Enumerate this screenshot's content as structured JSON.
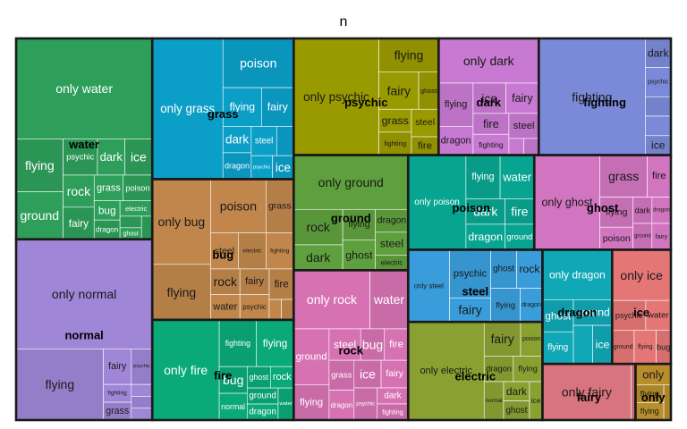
{
  "chart_data": {
    "type": "treemap",
    "title": "n",
    "groups": [
      {
        "name": "water",
        "color": "#2e9e5b",
        "light": true,
        "children": [
          {
            "name": "only water",
            "value": 55
          },
          {
            "name": "ground",
            "value": 9
          },
          {
            "name": "flying",
            "value": 10
          },
          {
            "name": "psychic",
            "value": 5
          },
          {
            "name": "dark",
            "value": 4
          },
          {
            "name": "ice",
            "value": 4
          },
          {
            "name": "grass",
            "value": 3
          },
          {
            "name": "poison",
            "value": 3
          },
          {
            "name": "rock",
            "value": 4
          },
          {
            "name": "fairy",
            "value": 4
          },
          {
            "name": "bug",
            "value": 2
          },
          {
            "name": "dragon",
            "value": 2
          },
          {
            "name": "electric",
            "value": 2
          },
          {
            "name": "",
            "value": 1
          },
          {
            "name": "ghost",
            "value": 1
          },
          {
            "name": "steel",
            "value": 1
          }
        ]
      },
      {
        "name": "normal",
        "color": "#9f86d6",
        "light": false,
        "children": [
          {
            "name": "only normal",
            "value": 60
          },
          {
            "name": "flying",
            "value": 25
          },
          {
            "name": "fairy",
            "value": 4
          },
          {
            "name": "psychic",
            "value": 3
          },
          {
            "name": "fighting",
            "value": 2
          },
          {
            "name": "grass",
            "value": 2
          },
          {
            "name": "",
            "value": 1
          },
          {
            "name": "",
            "value": 1
          },
          {
            "name": "",
            "value": 1
          }
        ]
      },
      {
        "name": "grass",
        "color": "#0b9fc8",
        "light": true,
        "children": [
          {
            "name": "only grass",
            "value": 40
          },
          {
            "name": "poison",
            "value": 14
          },
          {
            "name": "flying",
            "value": 6
          },
          {
            "name": "fairy",
            "value": 5
          },
          {
            "name": "dark",
            "value": 3
          },
          {
            "name": "dragon",
            "value": 3
          },
          {
            "name": "fighting",
            "value": 2
          },
          {
            "name": "steel",
            "value": 3
          },
          {
            "name": "psychic",
            "value": 2
          },
          {
            "name": "ice",
            "value": 2
          }
        ]
      },
      {
        "name": "bug",
        "color": "#c0864b",
        "light": false,
        "children": [
          {
            "name": "only bug",
            "value": 20
          },
          {
            "name": "flying",
            "value": 13
          },
          {
            "name": "poison",
            "value": 12
          },
          {
            "name": "grass",
            "value": 6
          },
          {
            "name": "steel",
            "value": 4
          },
          {
            "name": "rock",
            "value": 3
          },
          {
            "name": "water",
            "value": 3
          },
          {
            "name": "electric",
            "value": 4
          },
          {
            "name": "fairy",
            "value": 3
          },
          {
            "name": "psychic",
            "value": 3
          },
          {
            "name": "fighting",
            "value": 4
          },
          {
            "name": "fire",
            "value": 3
          },
          {
            "name": "",
            "value": 1
          },
          {
            "name": "",
            "value": 1
          }
        ]
      },
      {
        "name": "fire",
        "color": "#0aa978",
        "light": true,
        "children": [
          {
            "name": "only fire",
            "value": 27
          },
          {
            "name": "fighting",
            "value": 7
          },
          {
            "name": "flying",
            "value": 7
          },
          {
            "name": "bug",
            "value": 3
          },
          {
            "name": "normal",
            "value": 3
          },
          {
            "name": "ghost",
            "value": 2
          },
          {
            "name": "rock",
            "value": 2
          },
          {
            "name": "ground",
            "value": 2
          },
          {
            "name": "dragon",
            "value": 2
          },
          {
            "name": "water",
            "value": 2
          }
        ]
      },
      {
        "name": "psychic",
        "color": "#999900",
        "light": false,
        "children": [
          {
            "name": "only psychic",
            "value": 40
          },
          {
            "name": "fairy",
            "value": 6
          },
          {
            "name": "flying",
            "value": 8
          },
          {
            "name": "ghost",
            "value": 3
          },
          {
            "name": "grass",
            "value": 3
          },
          {
            "name": "fire",
            "value": 2
          },
          {
            "name": "fighting",
            "value": 3
          },
          {
            "name": "steel",
            "value": 3
          }
        ]
      },
      {
        "name": "dark",
        "color": "#c879d2",
        "light": false,
        "children": [
          {
            "name": "only dark",
            "value": 18
          },
          {
            "name": "flying",
            "value": 6
          },
          {
            "name": "dragon",
            "value": 4
          },
          {
            "name": "fire",
            "value": 3
          },
          {
            "name": "ice",
            "value": 4
          },
          {
            "name": "fairy",
            "value": 4
          },
          {
            "name": "fighting",
            "value": 3
          },
          {
            "name": "steel",
            "value": 3
          },
          {
            "name": "",
            "value": 1
          },
          {
            "name": "",
            "value": 1
          }
        ]
      },
      {
        "name": "fighting",
        "color": "#7b8ad8",
        "light": false,
        "children": [
          {
            "name": "fighting",
            "value": 50
          },
          {
            "name": "dark",
            "value": 3
          },
          {
            "name": "psychic",
            "value": 3
          },
          {
            "name": "",
            "value": 2
          },
          {
            "name": "",
            "value": 2
          },
          {
            "name": "ice",
            "value": 2
          }
        ]
      },
      {
        "name": "ground",
        "color": "#5fa03e",
        "light": false,
        "children": [
          {
            "name": "only ground",
            "value": 25
          },
          {
            "name": "rock",
            "value": 7
          },
          {
            "name": "flying",
            "value": 4
          },
          {
            "name": "ghost",
            "value": 4
          },
          {
            "name": "dark",
            "value": 5
          },
          {
            "name": "dragon",
            "value": 3
          },
          {
            "name": "electric",
            "value": 2
          },
          {
            "name": "steel",
            "value": 3
          }
        ]
      },
      {
        "name": "rock",
        "color": "#d672b2",
        "light": true,
        "children": [
          {
            "name": "only rock",
            "value": 18
          },
          {
            "name": "ground",
            "value": 8
          },
          {
            "name": "water",
            "value": 9
          },
          {
            "name": "flying",
            "value": 5
          },
          {
            "name": "bug",
            "value": 3
          },
          {
            "name": "fire",
            "value": 3
          },
          {
            "name": "grass",
            "value": 3
          },
          {
            "name": "steel",
            "value": 4
          },
          {
            "name": "dragon",
            "value": 3
          },
          {
            "name": "ice",
            "value": 3
          },
          {
            "name": "dark",
            "value": 2
          },
          {
            "name": "fairy",
            "value": 3
          },
          {
            "name": "psychic",
            "value": 3
          },
          {
            "name": "fighting",
            "value": 2
          }
        ]
      },
      {
        "name": "poison",
        "color": "#07a591",
        "light": true,
        "children": [
          {
            "name": "only poison",
            "value": 22
          },
          {
            "name": "flying",
            "value": 6
          },
          {
            "name": "water",
            "value": 6
          },
          {
            "name": "dark",
            "value": 4
          },
          {
            "name": "dragon",
            "value": 4
          },
          {
            "name": "fire",
            "value": 3
          },
          {
            "name": "ground",
            "value": 3
          }
        ]
      },
      {
        "name": "ghost",
        "color": "#d175c0",
        "light": false,
        "children": [
          {
            "name": "only ghost",
            "value": 25
          },
          {
            "name": "grass",
            "value": 8
          },
          {
            "name": "fire",
            "value": 4
          },
          {
            "name": "poison",
            "value": 3
          },
          {
            "name": "flying",
            "value": 4
          },
          {
            "name": "dark",
            "value": 2
          },
          {
            "name": "dragon",
            "value": 2
          },
          {
            "name": "ground",
            "value": 2
          },
          {
            "name": "fairy",
            "value": 2
          }
        ]
      },
      {
        "name": "steel",
        "color": "#399ddb",
        "light": false,
        "children": [
          {
            "name": "only steel",
            "value": 12
          },
          {
            "name": "psychic",
            "value": 8
          },
          {
            "name": "fairy",
            "value": 4
          },
          {
            "name": "ghost",
            "value": 4
          },
          {
            "name": "rock",
            "value": 4
          },
          {
            "name": "flying",
            "value": 4
          },
          {
            "name": "dragon",
            "value": 3
          }
        ]
      },
      {
        "name": "electric",
        "color": "#8aa132",
        "light": false,
        "children": [
          {
            "name": "only electric",
            "value": 30
          },
          {
            "name": "fairy",
            "value": 5
          },
          {
            "name": "poison",
            "value": 3
          },
          {
            "name": "dragon",
            "value": 3
          },
          {
            "name": "flying",
            "value": 3
          },
          {
            "name": "normal",
            "value": 3
          },
          {
            "name": "dark",
            "value": 2
          },
          {
            "name": "ghost",
            "value": 2
          },
          {
            "name": "ice",
            "value": 2
          }
        ]
      },
      {
        "name": "dragon",
        "color": "#10a7b6",
        "light": true,
        "children": [
          {
            "name": "only dragon",
            "value": 14
          },
          {
            "name": "ghost",
            "value": 4
          },
          {
            "name": "fighting",
            "value": 3
          },
          {
            "name": "flying",
            "value": 4
          },
          {
            "name": "ground",
            "value": 4
          },
          {
            "name": "ice",
            "value": 3
          }
        ]
      },
      {
        "name": "ice",
        "color": "#e57676",
        "light": false,
        "children": [
          {
            "name": "only ice",
            "value": 12
          },
          {
            "name": "psychic",
            "value": 4
          },
          {
            "name": "water",
            "value": 3
          },
          {
            "name": "bug",
            "value": 2
          },
          {
            "name": "ground",
            "value": 3
          },
          {
            "name": "flying",
            "value": 3
          }
        ]
      },
      {
        "name": "fairy",
        "color": "#d8747e",
        "light": false,
        "children": [
          {
            "name": "only fairy",
            "value": 20
          },
          {
            "name": "flying",
            "value": 1
          }
        ]
      },
      {
        "name": "only",
        "color": "#b88d2c",
        "light": false,
        "children": [
          {
            "name": "only",
            "value": 3
          },
          {
            "name": "flying",
            "value": 2
          },
          {
            "name": "flying",
            "value": 2
          },
          {
            "name": "",
            "value": 1
          }
        ]
      }
    ]
  }
}
